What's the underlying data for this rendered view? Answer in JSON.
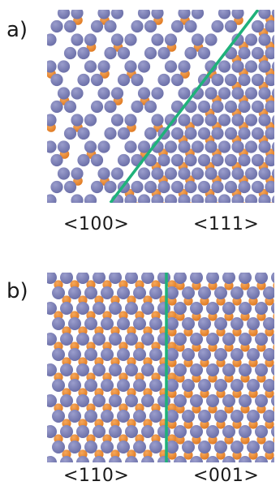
{
  "panel_a": {
    "label": "a)",
    "left_direction": "<100>",
    "right_direction": "<111>"
  },
  "panel_b": {
    "label": "b)",
    "left_direction": "<110>",
    "right_direction": "<001>"
  },
  "colors": {
    "large_atom": "#6b6fa8",
    "large_atom_highlight": "#9a9dcc",
    "small_atom": "#e07a22",
    "small_atom_highlight": "#f5a85c",
    "boundary_line": "#1fb27a"
  }
}
